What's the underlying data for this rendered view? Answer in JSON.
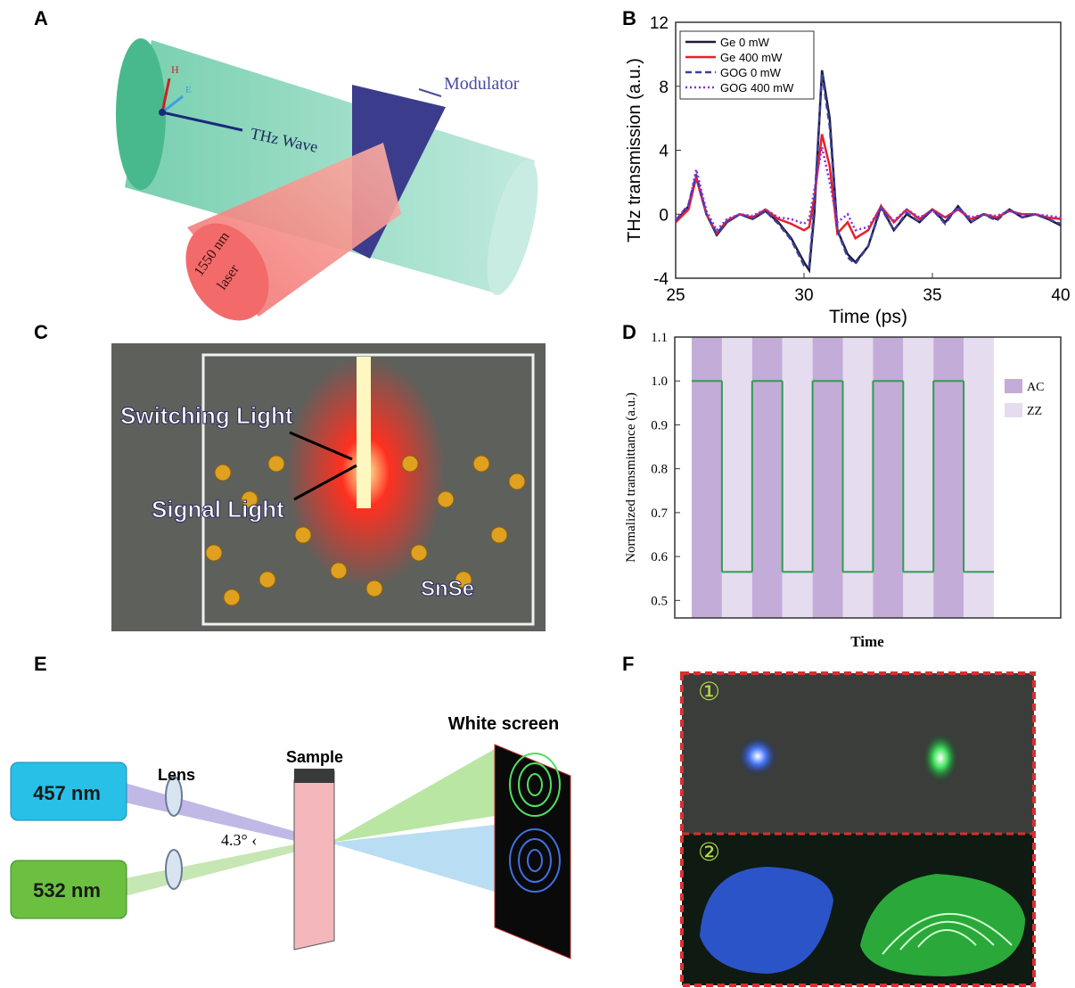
{
  "panels": {
    "A": {
      "letter": "A",
      "modulator": "Modulator",
      "thz_wave": "THz Wave",
      "laser_1": "1550 nm",
      "laser_2": "laser",
      "h": "H",
      "e": "E"
    },
    "B": {
      "letter": "B"
    },
    "C": {
      "letter": "C",
      "switching": "Switching Light",
      "signal": "Signal Light",
      "material": "SnSe"
    },
    "D": {
      "letter": "D"
    },
    "E": {
      "letter": "E",
      "white_screen": "White screen",
      "sample": "Sample",
      "lens": "Lens",
      "laser_blue": "457 nm",
      "laser_green": "532 nm",
      "angle": "4.3° ‹"
    },
    "F": {
      "letter": "F",
      "mark_1": "①",
      "mark_2": "②"
    }
  },
  "chart_data": [
    {
      "type": "line",
      "xlabel": "Time (ps)",
      "ylabel": "THz transmission (a.u.)",
      "x": [
        25,
        25.5,
        25.8,
        26.2,
        26.6,
        27,
        27.5,
        28,
        28.5,
        29,
        29.5,
        30,
        30.2,
        30.4,
        30.7,
        31,
        31.3,
        31.7,
        32,
        32.5,
        33,
        33.5,
        34,
        34.5,
        35,
        35.5,
        36,
        36.5,
        37,
        37.5,
        38,
        38.5,
        39,
        39.5,
        40
      ],
      "series": [
        {
          "name": "Ge 0 mW",
          "color": "#1c1c3a",
          "dash": "solid",
          "values": [
            -0.5,
            0.5,
            2.3,
            0,
            -1.3,
            -0.5,
            0,
            -0.3,
            0.2,
            -0.5,
            -1.5,
            -3,
            -3.5,
            0,
            9,
            6,
            -1,
            -2.5,
            -3,
            -2,
            0.5,
            -1,
            0,
            -0.5,
            0.3,
            -0.5,
            0.5,
            -0.5,
            0,
            -0.3,
            0.3,
            -0.2,
            0,
            -0.3,
            -0.7
          ]
        },
        {
          "name": "Ge 400 mW",
          "color": "#e8202a",
          "dash": "solid",
          "values": [
            -0.5,
            0.3,
            2.3,
            0,
            -1.2,
            -0.4,
            0,
            -0.2,
            0.3,
            -0.3,
            -0.6,
            -1,
            -0.8,
            1,
            5,
            3,
            -1.2,
            -0.5,
            -1.5,
            -1,
            0.5,
            -0.5,
            0.3,
            -0.3,
            0.3,
            -0.2,
            0.3,
            -0.3,
            0,
            -0.2,
            0.2,
            0,
            0,
            -0.2,
            -0.3
          ]
        },
        {
          "name": "GOG 0  mW",
          "color": "#3b3fa0",
          "dash": "dashed",
          "values": [
            -0.4,
            0.6,
            2.5,
            0,
            -1.2,
            -0.5,
            0,
            -0.3,
            0.2,
            -0.6,
            -1.6,
            -3.2,
            -3.3,
            0.5,
            8.8,
            5.5,
            -1,
            -2.7,
            -3.1,
            -2,
            0.4,
            -1,
            0.1,
            -0.5,
            0.3,
            -0.6,
            0.5,
            -0.5,
            0,
            -0.4,
            0.3,
            -0.2,
            0,
            -0.3,
            -0.6
          ]
        },
        {
          "name": "GOG 400 mW",
          "color": "#8a2be2",
          "dash": "dotted",
          "values": [
            -0.3,
            0.5,
            2.8,
            0.2,
            -1,
            -0.3,
            0,
            -0.1,
            0.3,
            -0.2,
            -0.3,
            -0.6,
            -0.3,
            1.5,
            4.2,
            2,
            -0.5,
            0,
            -1,
            -0.8,
            0.4,
            -0.4,
            0.3,
            -0.2,
            0.2,
            -0.2,
            0.3,
            -0.2,
            0,
            -0.1,
            0.2,
            0,
            0,
            -0.1,
            -0.2
          ]
        }
      ],
      "xlim": [
        25,
        40
      ],
      "xticks": [
        25,
        30,
        35,
        40
      ],
      "ylim": [
        -4,
        12
      ],
      "yticks": [
        -4,
        0,
        4,
        8,
        12
      ],
      "legend": "upper left"
    },
    {
      "type": "step",
      "xlabel": "Time",
      "ylabel": "Normalized transmittance (a.u.)",
      "categories": [
        null,
        null,
        null,
        null,
        null,
        null,
        null,
        null,
        null,
        null
      ],
      "values": [
        1.0,
        0.565,
        1.0,
        0.565,
        1.0,
        0.565,
        1.0,
        0.565,
        1.0,
        0.565
      ],
      "color": "#2e9e4f",
      "bands": [
        {
          "name": "AC",
          "color": "#c3acd8"
        },
        {
          "name": "ZZ",
          "color": "#e6dcef"
        }
      ],
      "ylim": [
        0.46,
        1.1
      ],
      "yticks": [
        0.5,
        0.6,
        0.7,
        0.8,
        0.9,
        {
          "value": 1,
          "label": "1.0"
        },
        1.1
      ],
      "legend": "right"
    }
  ]
}
